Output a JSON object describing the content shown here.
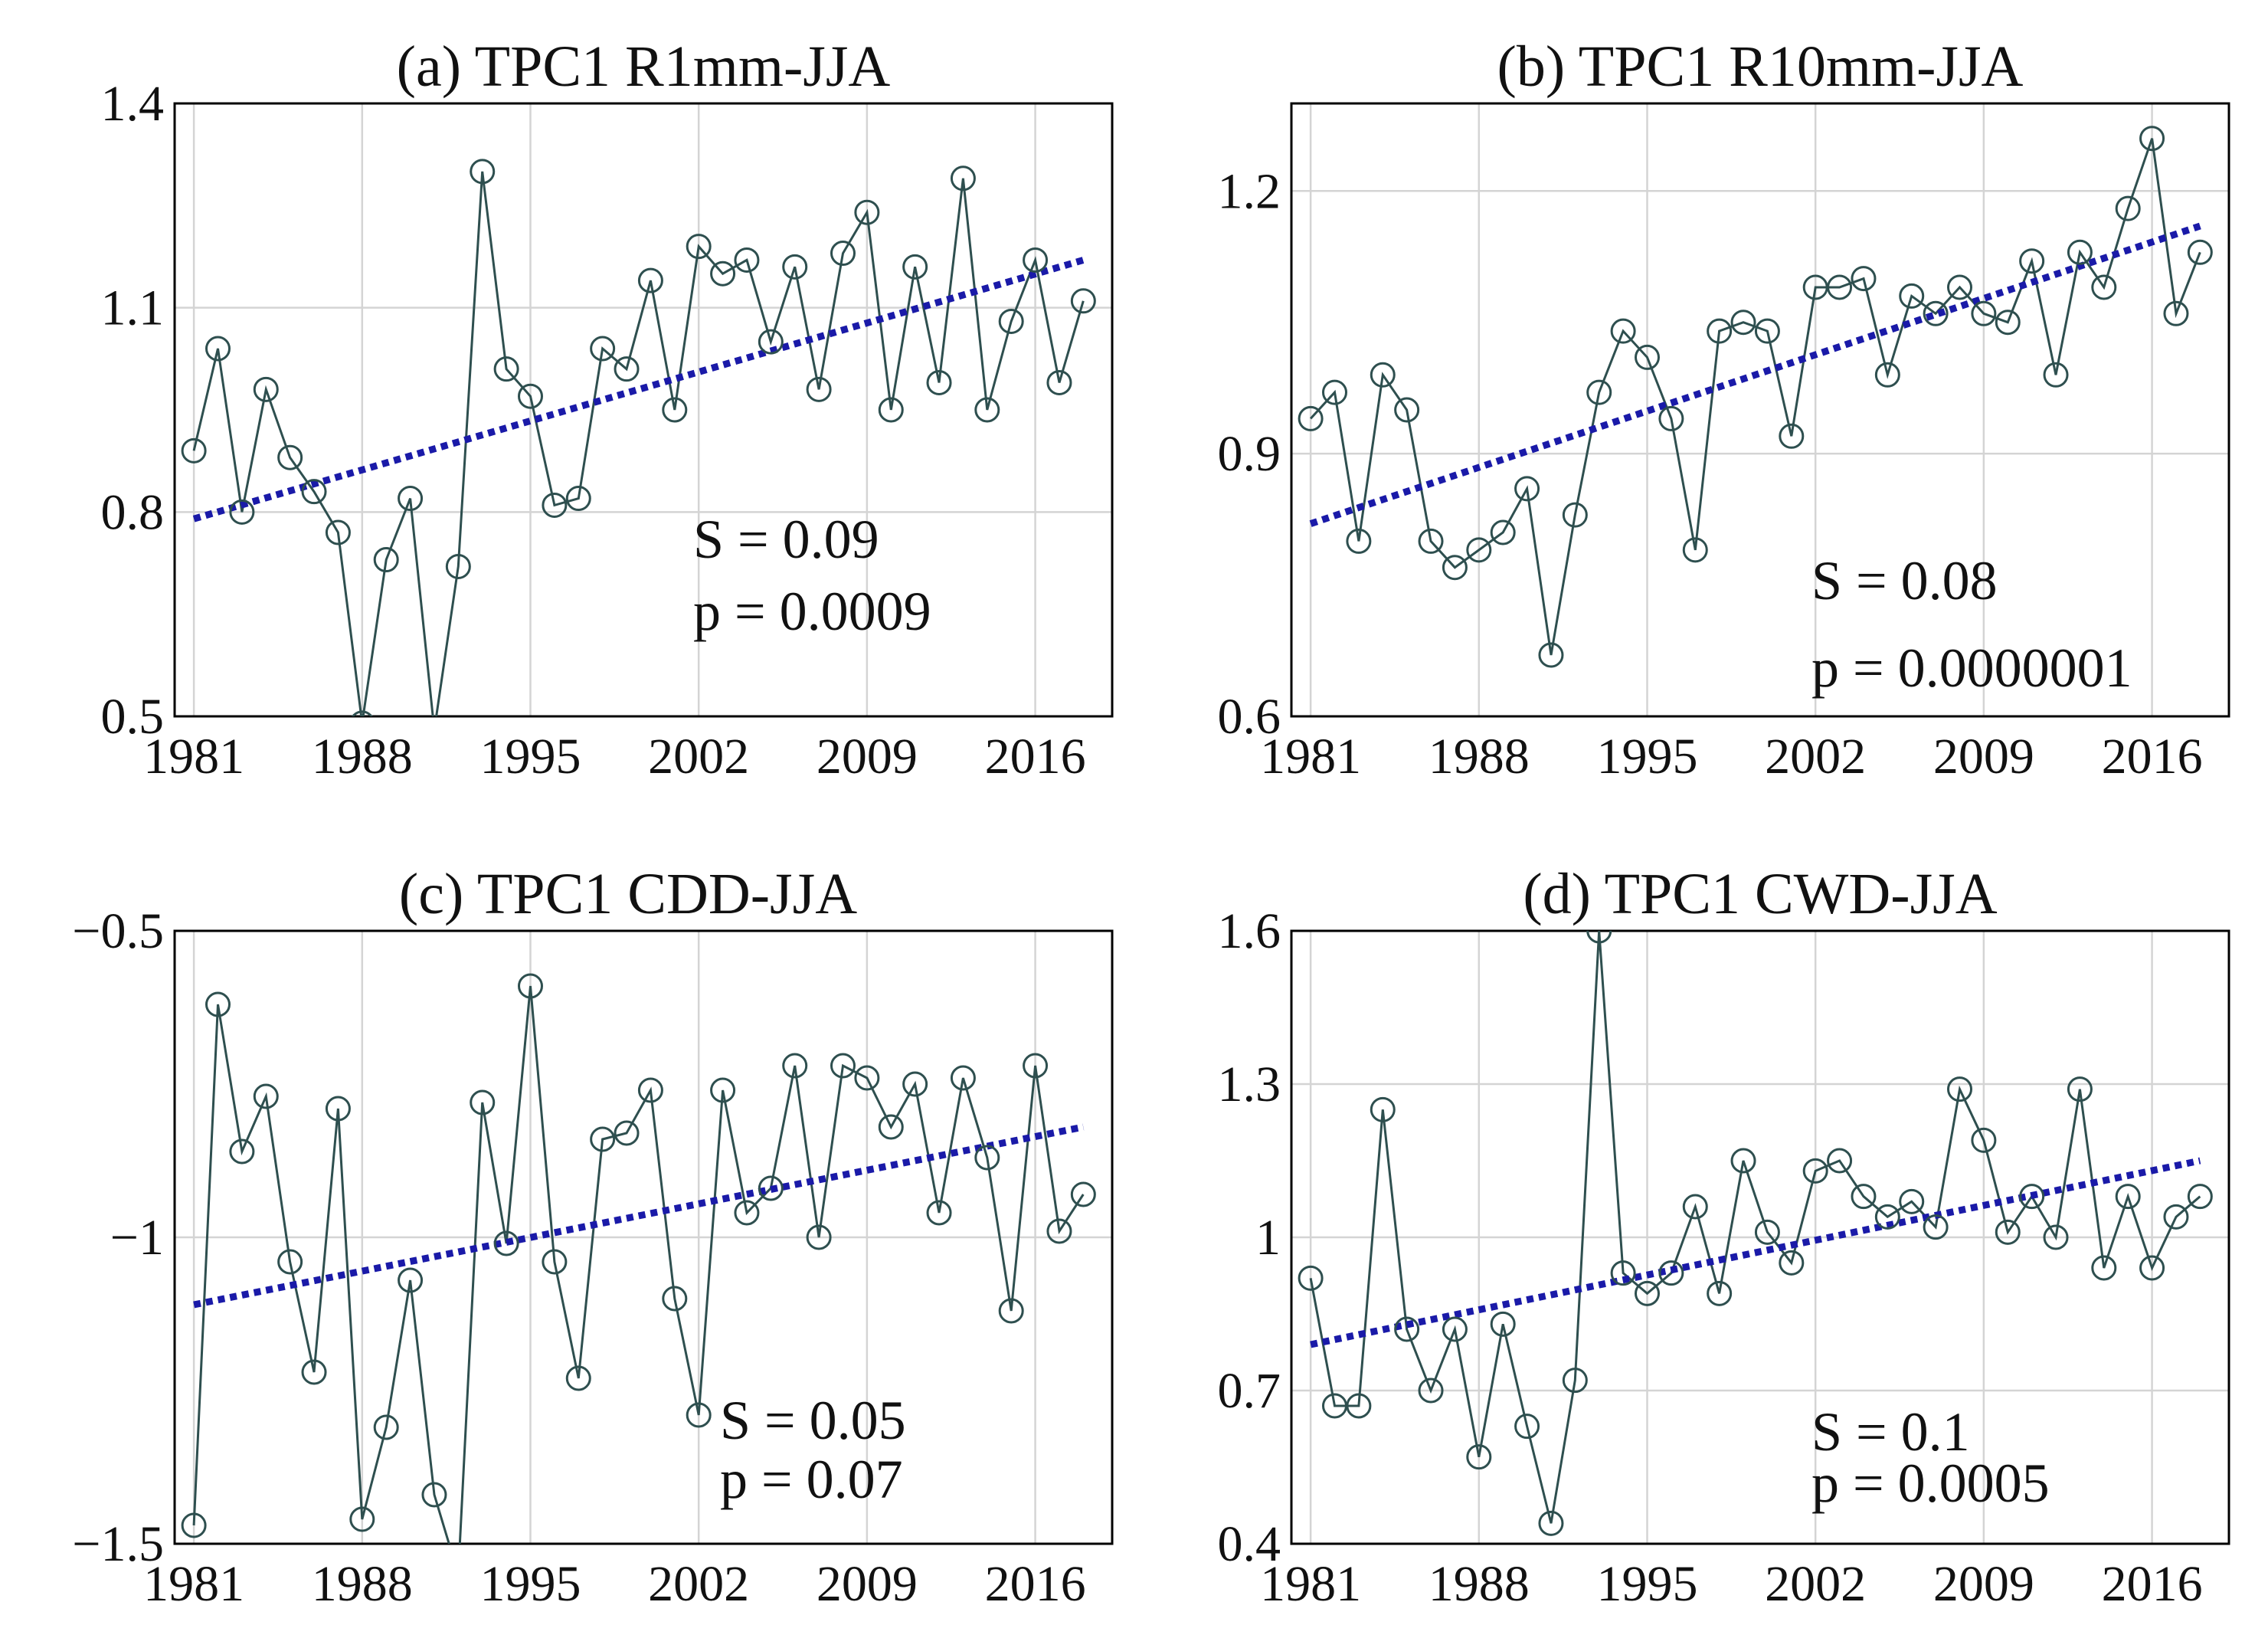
{
  "colors": {
    "series": "#2e4f4f",
    "trend": "#1a1aa8",
    "grid": "#d4d4d4"
  },
  "chart_data": [
    {
      "id": "a",
      "type": "line",
      "title": "(a) TPC1 R1mm-JJA",
      "x": [
        1981,
        1982,
        1983,
        1984,
        1985,
        1986,
        1987,
        1988,
        1989,
        1990,
        1991,
        1992,
        1993,
        1994,
        1995,
        1996,
        1997,
        1998,
        1999,
        2000,
        2001,
        2002,
        2003,
        2004,
        2005,
        2006,
        2007,
        2008,
        2009,
        2010,
        2011,
        2012,
        2013,
        2014,
        2015,
        2016,
        2017,
        2018
      ],
      "values": [
        0.89,
        1.04,
        0.8,
        0.98,
        0.88,
        0.83,
        0.77,
        0.49,
        0.73,
        0.82,
        0.48,
        0.72,
        1.3,
        1.01,
        0.97,
        0.81,
        0.82,
        1.04,
        1.01,
        1.14,
        0.95,
        1.19,
        1.15,
        1.17,
        1.05,
        1.16,
        0.98,
        1.18,
        1.24,
        0.95,
        1.16,
        0.99,
        1.29,
        0.95,
        1.08,
        1.17,
        0.99,
        1.11
      ],
      "trend": [
        0.79,
        1.17
      ],
      "ylim": [
        0.5,
        1.4
      ],
      "yticks": [
        "0.5",
        "0.8",
        "1.1",
        "1.4"
      ],
      "xlim": [
        1980.2,
        2019.2
      ],
      "xticks": [
        "1981",
        "1988",
        "1995",
        "2002",
        "2009",
        "2016"
      ],
      "annotations": [
        "S = 0.09",
        "p = 0.0009"
      ]
    },
    {
      "id": "b",
      "type": "line",
      "title": "(b) TPC1 R10mm-JJA",
      "x": [
        1981,
        1982,
        1983,
        1984,
        1985,
        1986,
        1987,
        1988,
        1989,
        1990,
        1991,
        1992,
        1993,
        1994,
        1995,
        1996,
        1997,
        1998,
        1999,
        2000,
        2001,
        2002,
        2003,
        2004,
        2005,
        2006,
        2007,
        2008,
        2009,
        2010,
        2011,
        2012,
        2013,
        2014,
        2015,
        2016,
        2017,
        2018
      ],
      "values": [
        0.94,
        0.97,
        0.8,
        0.99,
        0.95,
        0.8,
        0.77,
        0.79,
        0.81,
        0.86,
        0.67,
        0.83,
        0.97,
        1.04,
        1.01,
        0.94,
        0.79,
        1.04,
        1.05,
        1.04,
        0.92,
        1.09,
        1.09,
        1.1,
        0.99,
        1.08,
        1.06,
        1.09,
        1.06,
        1.05,
        1.12,
        0.99,
        1.13,
        1.09,
        1.18,
        1.26,
        1.06,
        1.13
      ],
      "trend": [
        0.82,
        1.16
      ],
      "ylim": [
        0.6,
        1.3
      ],
      "yticks": [
        "0.6",
        "0.9",
        "1.2"
      ],
      "xlim": [
        1980.2,
        2019.2
      ],
      "xticks": [
        "1981",
        "1988",
        "1995",
        "2002",
        "2009",
        "2016"
      ],
      "annotations": [
        "S = 0.08",
        "p = 0.0000001"
      ]
    },
    {
      "id": "c",
      "type": "line",
      "title": "(c) TPC1 CDD-JJA",
      "x": [
        1981,
        1982,
        1983,
        1984,
        1985,
        1986,
        1987,
        1988,
        1989,
        1990,
        1991,
        1992,
        1993,
        1994,
        1995,
        1996,
        1997,
        1998,
        1999,
        2000,
        2001,
        2002,
        2003,
        2004,
        2005,
        2006,
        2007,
        2008,
        2009,
        2010,
        2011,
        2012,
        2013,
        2014,
        2015,
        2016,
        2017,
        2018
      ],
      "values": [
        -1.47,
        -0.62,
        -0.86,
        -0.77,
        -1.04,
        -1.22,
        -0.79,
        -1.46,
        -1.31,
        -1.07,
        -1.42,
        -1.55,
        -0.78,
        -1.01,
        -0.59,
        -1.04,
        -1.23,
        -0.84,
        -0.83,
        -0.76,
        -1.1,
        -1.29,
        -0.76,
        -0.96,
        -0.92,
        -0.72,
        -1.0,
        -0.72,
        -0.74,
        -0.82,
        -0.75,
        -0.96,
        -0.74,
        -0.87,
        -1.12,
        -0.72,
        -0.99,
        -0.93
      ],
      "trend": [
        -1.11,
        -0.82
      ],
      "ylim": [
        -1.5,
        -0.5
      ],
      "yticks": [
        "-1.5",
        "-1",
        "-0.5"
      ],
      "xlim": [
        1980.2,
        2019.2
      ],
      "xticks": [
        "1981",
        "1988",
        "1995",
        "2002",
        "2009",
        "2016"
      ],
      "annotations": [
        "S = 0.05",
        "p = 0.07"
      ]
    },
    {
      "id": "d",
      "type": "line",
      "title": "(d) TPC1 CWD-JJA",
      "x": [
        1981,
        1982,
        1983,
        1984,
        1985,
        1986,
        1987,
        1988,
        1989,
        1990,
        1991,
        1992,
        1993,
        1994,
        1995,
        1996,
        1997,
        1998,
        1999,
        2000,
        2001,
        2002,
        2003,
        2004,
        2005,
        2006,
        2007,
        2008,
        2009,
        2010,
        2011,
        2012,
        2013,
        2014,
        2015,
        2016,
        2017,
        2018
      ],
      "values": [
        0.92,
        0.67,
        0.67,
        1.25,
        0.82,
        0.7,
        0.82,
        0.57,
        0.83,
        0.63,
        0.44,
        0.72,
        1.6,
        0.93,
        0.89,
        0.93,
        1.06,
        0.89,
        1.15,
        1.01,
        0.95,
        1.13,
        1.15,
        1.08,
        1.04,
        1.07,
        1.02,
        1.29,
        1.19,
        1.01,
        1.08,
        1.0,
        1.29,
        0.94,
        1.08,
        0.94,
        1.04,
        1.08
      ],
      "trend": [
        0.79,
        1.15
      ],
      "ylim": [
        0.4,
        1.6
      ],
      "yticks": [
        "0.4",
        "0.7",
        "1",
        "1.3",
        "1.6"
      ],
      "xlim": [
        1980.2,
        2019.2
      ],
      "xticks": [
        "1981",
        "1988",
        "1995",
        "2002",
        "2009",
        "2016"
      ],
      "annotations": [
        "S = 0.1",
        "p = 0.0005"
      ]
    }
  ]
}
